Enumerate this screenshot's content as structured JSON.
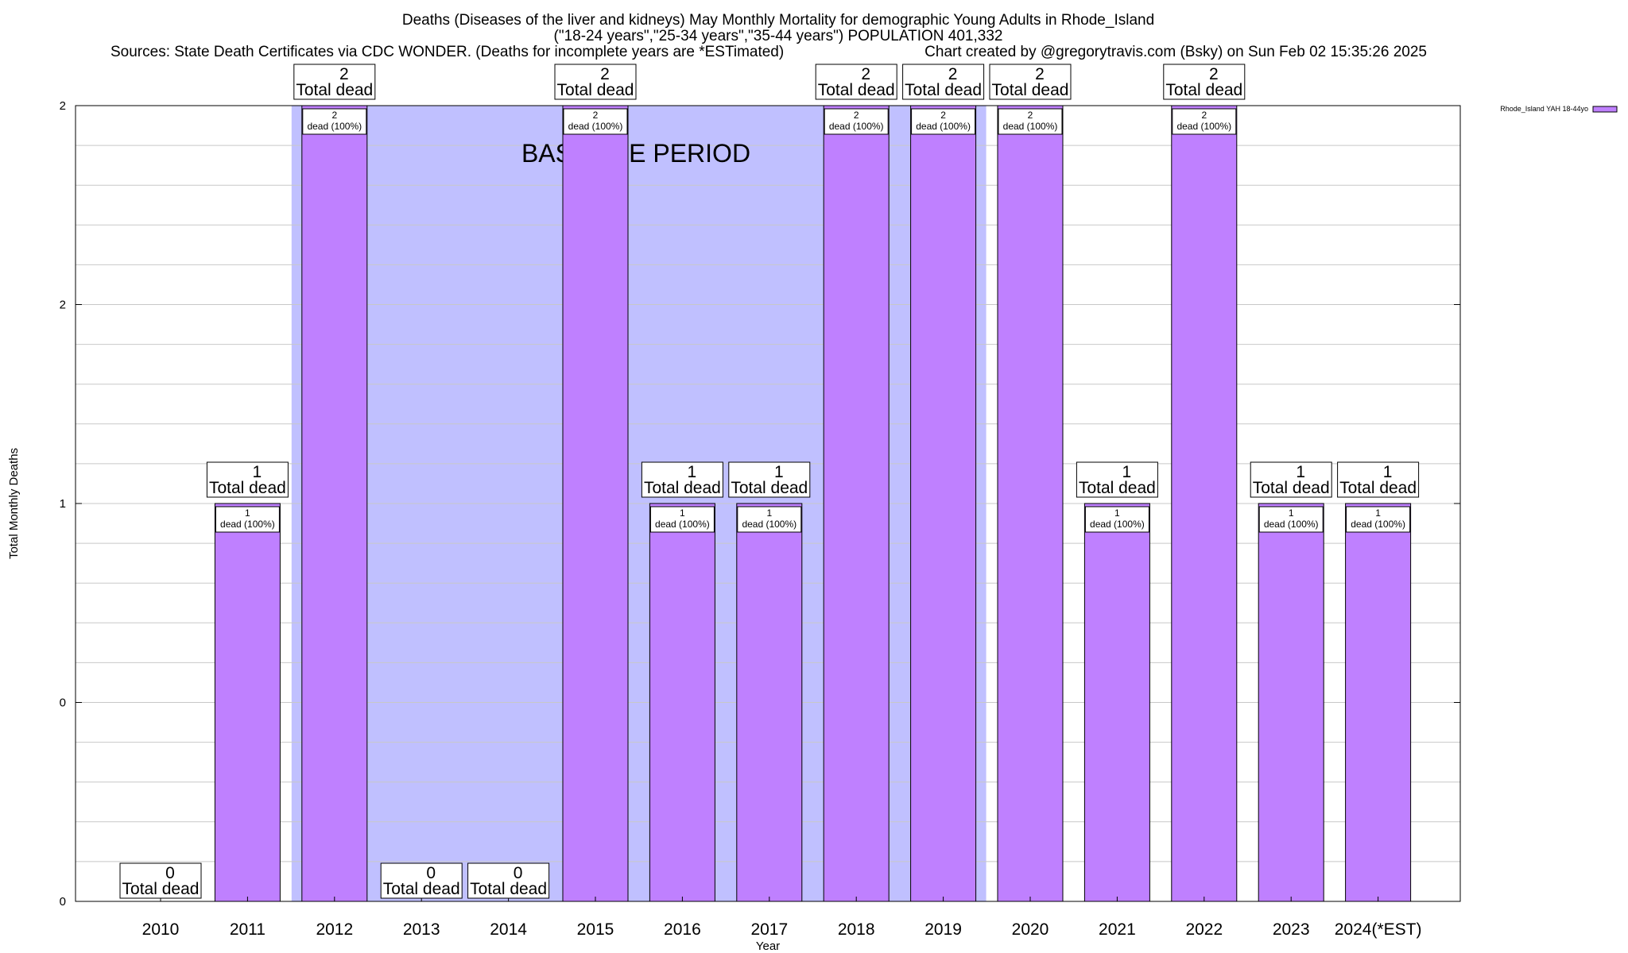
{
  "chart_data": {
    "type": "bar",
    "title_lines": [
      "Deaths (Diseases of the liver and kidneys) May Monthly Mortality for demographic Young Adults in Rhode_Island",
      "(\"18-24 years\",\"25-34 years\",\"35-44 years\") POPULATION 401,332"
    ],
    "source_left": "Sources: State Death Certificates via CDC WONDER. (Deaths for incomplete years are *ESTimated)",
    "source_right": "Chart created by @gregorytravis.com (Bsky) on Sun Feb 02 15:35:26 2025",
    "xlabel": "Year",
    "ylabel": "Total Monthly Deaths",
    "ylim": [
      0,
      2
    ],
    "y_tick_labels": [
      "0",
      "0",
      "1",
      "2",
      "2"
    ],
    "grid": true,
    "legend": {
      "position": "top-right",
      "label": "Rhode_Island YAH 18-44yo"
    },
    "baseline_label": "BASELINE PERIOD",
    "baseline_range": [
      "2012",
      "2019"
    ],
    "total_label": "Total dead",
    "inner_label": "dead (100%)",
    "categories": [
      "2010",
      "2011",
      "2012",
      "2013",
      "2014",
      "2015",
      "2016",
      "2017",
      "2018",
      "2019",
      "2020",
      "2021",
      "2022",
      "2023",
      "2024(*EST)"
    ],
    "series": [
      {
        "name": "Rhode_Island YAH 18-44yo",
        "values": [
          0,
          1,
          2,
          0,
          0,
          2,
          1,
          1,
          2,
          2,
          2,
          1,
          2,
          1,
          1
        ]
      }
    ],
    "colors": {
      "bar": "#bf80ff",
      "baseline_band": "#c0c0ff",
      "grid": "#c8c8c8"
    }
  }
}
